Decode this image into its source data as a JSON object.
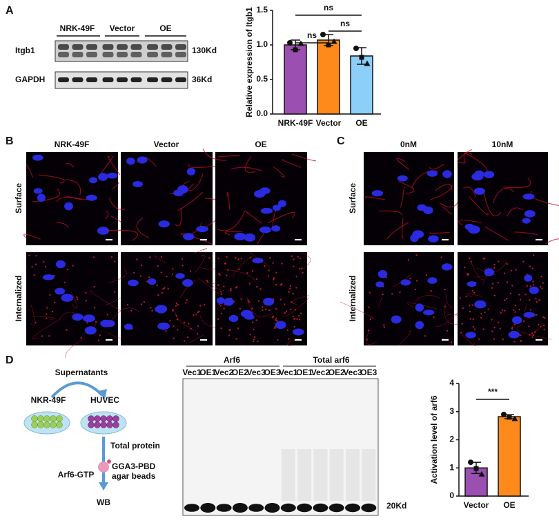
{
  "panels": {
    "A": {
      "label": "A",
      "blot": {
        "groups": [
          "NRK-49F",
          "Vector",
          "OE"
        ],
        "rows": [
          {
            "name": "Itgb1",
            "size": "130Kd"
          },
          {
            "name": "GAPDH",
            "size": "36Kd"
          }
        ]
      }
    },
    "B": {
      "label": "B",
      "columns": [
        "NRK-49F",
        "Vector",
        "OE"
      ],
      "rows": [
        "Surface",
        "Internalized"
      ]
    },
    "C": {
      "label": "C",
      "columns": [
        "0nM",
        "10nM"
      ],
      "rows": [
        "Surface",
        "Internalized"
      ]
    },
    "D": {
      "label": "D",
      "schematic": {
        "supernatants": "Supernatants",
        "source": "NKR-49F",
        "target": "HUVEC",
        "total_protein": "Total protein",
        "beads": [
          "GGA3-PBD",
          "agar beads"
        ],
        "arf6_gtp": "Arf6-GTP",
        "wb": "WB"
      },
      "blot": {
        "groups": [
          "Arf6",
          "Total arf6"
        ],
        "lanes": [
          "Vec1",
          "OE1",
          "Vec2",
          "OE2",
          "Vec3",
          "OE3",
          "Vec1",
          "OE1",
          "Vec2",
          "OE2",
          "Vec3",
          "OE3"
        ],
        "size": "20Kd"
      }
    }
  },
  "chart_data": [
    {
      "type": "bar",
      "ylabel": "Relative expression of Itgb1",
      "categories": [
        "NRK-49F",
        "Vector",
        "OE"
      ],
      "values": [
        1.0,
        1.07,
        0.84
      ],
      "errors": [
        0.07,
        0.08,
        0.12
      ],
      "points": [
        [
          1.03,
          0.93,
          1.02
        ],
        [
          1.15,
          1.0,
          1.05
        ],
        [
          0.95,
          0.82,
          0.73
        ]
      ],
      "colors": [
        "#9b4fb0",
        "#ff8a1c",
        "#8ccff8"
      ],
      "ylim": [
        0,
        1.5
      ],
      "yticks": [
        {
          "value": 0,
          "label": "0.0"
        },
        0.5,
        {
          "value": 1,
          "label": "1.0"
        },
        1.5
      ],
      "significance": [
        {
          "pair": [
            "NRK-49F",
            "OE"
          ],
          "label": "ns"
        },
        {
          "pair": [
            "NRK-49F",
            "Vector"
          ],
          "label": "ns"
        },
        {
          "pair": [
            "Vector",
            "OE"
          ],
          "label": "ns"
        }
      ]
    },
    {
      "type": "bar",
      "ylabel": "Activation level of arf6",
      "categories": [
        "Vector",
        "OE"
      ],
      "values": [
        1.0,
        2.82
      ],
      "errors": [
        0.2,
        0.07
      ],
      "points": [
        [
          1.2,
          0.98,
          0.78
        ],
        [
          2.9,
          2.8,
          2.75
        ]
      ],
      "colors": [
        "#9b4fb0",
        "#ff8a1c"
      ],
      "ylim": [
        0,
        4
      ],
      "yticks": [
        0,
        1,
        2,
        3,
        4
      ],
      "significance": [
        {
          "pair": [
            "Vector",
            "OE"
          ],
          "label": "***"
        }
      ]
    }
  ]
}
